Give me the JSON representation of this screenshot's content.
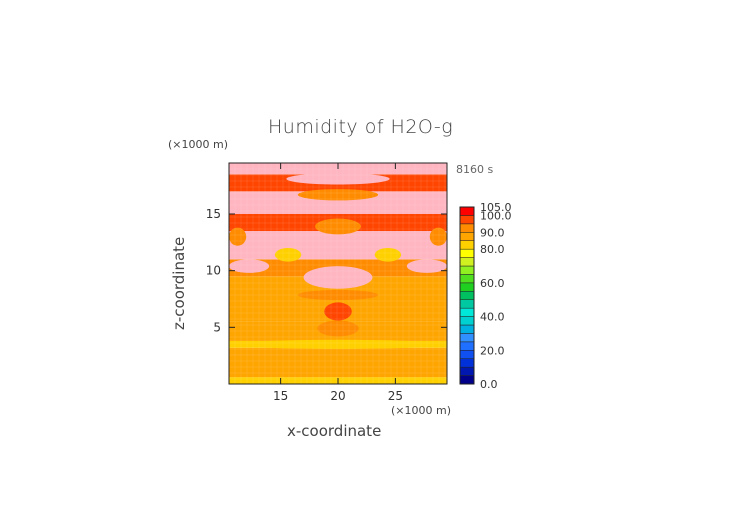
{
  "chart_data": {
    "type": "heatmap",
    "title": "Humidity of H2O-g",
    "time": "8160 s",
    "xlabel": "x-coordinate",
    "ylabel": "z-coordinate",
    "x_unit": "(×1000 m)",
    "y_unit": "(×1000 m)",
    "xlim": [
      10.5,
      29.5
    ],
    "ylim": [
      0,
      19.5
    ],
    "x_ticks": [
      15,
      20,
      25
    ],
    "y_ticks": [
      5,
      10,
      15
    ],
    "colorbar": {
      "levels": [
        0,
        5,
        10,
        15,
        20,
        25,
        30,
        35,
        40,
        45,
        50,
        55,
        60,
        65,
        70,
        75,
        80,
        85,
        90,
        95,
        100,
        105
      ],
      "colors": [
        "#00008b",
        "#0018b0",
        "#0030d8",
        "#1050f0",
        "#2070ff",
        "#3090ff",
        "#00b0e0",
        "#00d0d0",
        "#00e8d8",
        "#00c8a0",
        "#00c060",
        "#20d020",
        "#50e020",
        "#90f020",
        "#d0f020",
        "#ffff00",
        "#ffd000",
        "#ffa500",
        "#ff8c00",
        "#ff4500",
        "#ff0000",
        "#ffffff"
      ],
      "tick_labels": [
        "0.0",
        "20.0",
        "40.0",
        "60.0",
        "80.0",
        "90.0",
        "100.0",
        "105.0"
      ]
    },
    "bands": [
      {
        "z": [
          0,
          0.6
        ],
        "value": 82
      },
      {
        "z": [
          0.6,
          1.5
        ],
        "value": 87
      },
      {
        "z": [
          1.5,
          2.6
        ],
        "value": 86
      },
      {
        "z": [
          2.6,
          3.2
        ],
        "value": 88
      },
      {
        "z": [
          3.2,
          3.8
        ],
        "value": 80
      },
      {
        "z": [
          3.8,
          5.5
        ],
        "value": 86
      },
      {
        "z": [
          5.5,
          7.5
        ],
        "value": 88
      },
      {
        "z": [
          7.5,
          9.5
        ],
        "value": 87
      },
      {
        "z": [
          9.5,
          11.0
        ],
        "value": 92
      },
      {
        "z": [
          11.0,
          13.5
        ],
        "value": 101
      },
      {
        "z": [
          13.5,
          15.0
        ],
        "value": 97
      },
      {
        "z": [
          15.0,
          17.0
        ],
        "value": 101
      },
      {
        "z": [
          17.0,
          18.5
        ],
        "value": 97
      },
      {
        "z": [
          18.5,
          19.5
        ],
        "value": 101
      }
    ],
    "patches": [
      {
        "x": [
          10.5,
          29.5
        ],
        "z": [
          3.1,
          3.9
        ],
        "value": 80
      },
      {
        "x": [
          18.2,
          21.8
        ],
        "z": [
          4.2,
          5.6
        ],
        "value": 92
      },
      {
        "x": [
          18.8,
          21.2
        ],
        "z": [
          5.6,
          7.2
        ],
        "value": 97
      },
      {
        "x": [
          16.5,
          23.5
        ],
        "z": [
          7.4,
          8.3
        ],
        "value": 92
      },
      {
        "x": [
          17.0,
          23.0
        ],
        "z": [
          8.4,
          10.4
        ],
        "value": 102
      },
      {
        "x": [
          10.5,
          14.0
        ],
        "z": [
          9.8,
          11.0
        ],
        "value": 102
      },
      {
        "x": [
          26.0,
          29.5
        ],
        "z": [
          9.8,
          11.0
        ],
        "value": 102
      },
      {
        "x": [
          14.5,
          16.8
        ],
        "z": [
          10.8,
          12.0
        ],
        "value": 82
      },
      {
        "x": [
          23.2,
          25.5
        ],
        "z": [
          10.8,
          12.0
        ],
        "value": 82
      },
      {
        "x": [
          18.0,
          22.0
        ],
        "z": [
          13.2,
          14.6
        ],
        "value": 92
      },
      {
        "x": [
          10.5,
          12.0
        ],
        "z": [
          12.2,
          13.8
        ],
        "value": 92
      },
      {
        "x": [
          28.0,
          29.5
        ],
        "z": [
          12.2,
          13.8
        ],
        "value": 92
      },
      {
        "x": [
          16.5,
          23.5
        ],
        "z": [
          16.2,
          17.2
        ],
        "value": 92
      },
      {
        "x": [
          11.5,
          14.5
        ],
        "z": [
          15.4,
          16.8
        ],
        "value": 102
      },
      {
        "x": [
          25.5,
          28.5
        ],
        "z": [
          15.4,
          16.8
        ],
        "value": 102
      },
      {
        "x": [
          15.5,
          24.5
        ],
        "z": [
          17.6,
          18.6
        ],
        "value": 102
      },
      {
        "x": [
          13.0,
          17.0
        ],
        "z": [
          18.6,
          19.5
        ],
        "value": 102
      },
      {
        "x": [
          23.0,
          27.0
        ],
        "z": [
          18.6,
          19.5
        ],
        "value": 102
      }
    ]
  }
}
